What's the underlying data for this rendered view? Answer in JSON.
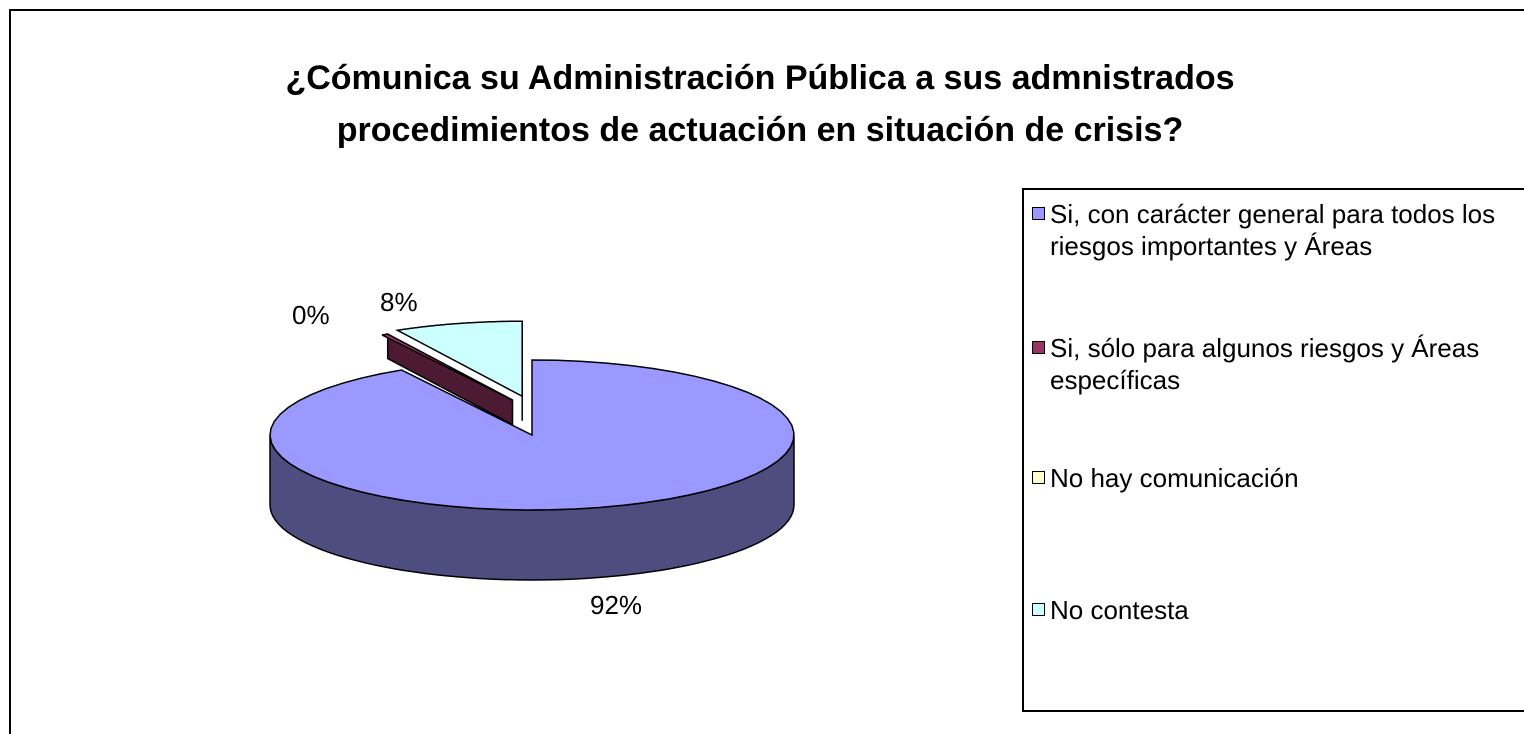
{
  "chart_data": {
    "type": "pie3d",
    "title": "¿Cómunica su Administración Pública a sus admnistrados procedimientos de actuación en situación de crisis?",
    "categories": [
      "Si, con carácter general para todos los riesgos importantes y Áreas",
      "Si, sólo para algunos riesgos y Áreas específicas",
      "No hay comunicación",
      "No contesta"
    ],
    "values": [
      91.7,
      0.4,
      0,
      7.9
    ],
    "value_labels": [
      "92%",
      "0%",
      null,
      "8%"
    ],
    "colors": [
      "#9999ff",
      "#993366",
      "#ffffcc",
      "#ccffff"
    ],
    "side_colors": [
      "#4d4d80",
      "#4d1a33",
      "#80806a",
      "#669999"
    ],
    "legend": "right"
  }
}
